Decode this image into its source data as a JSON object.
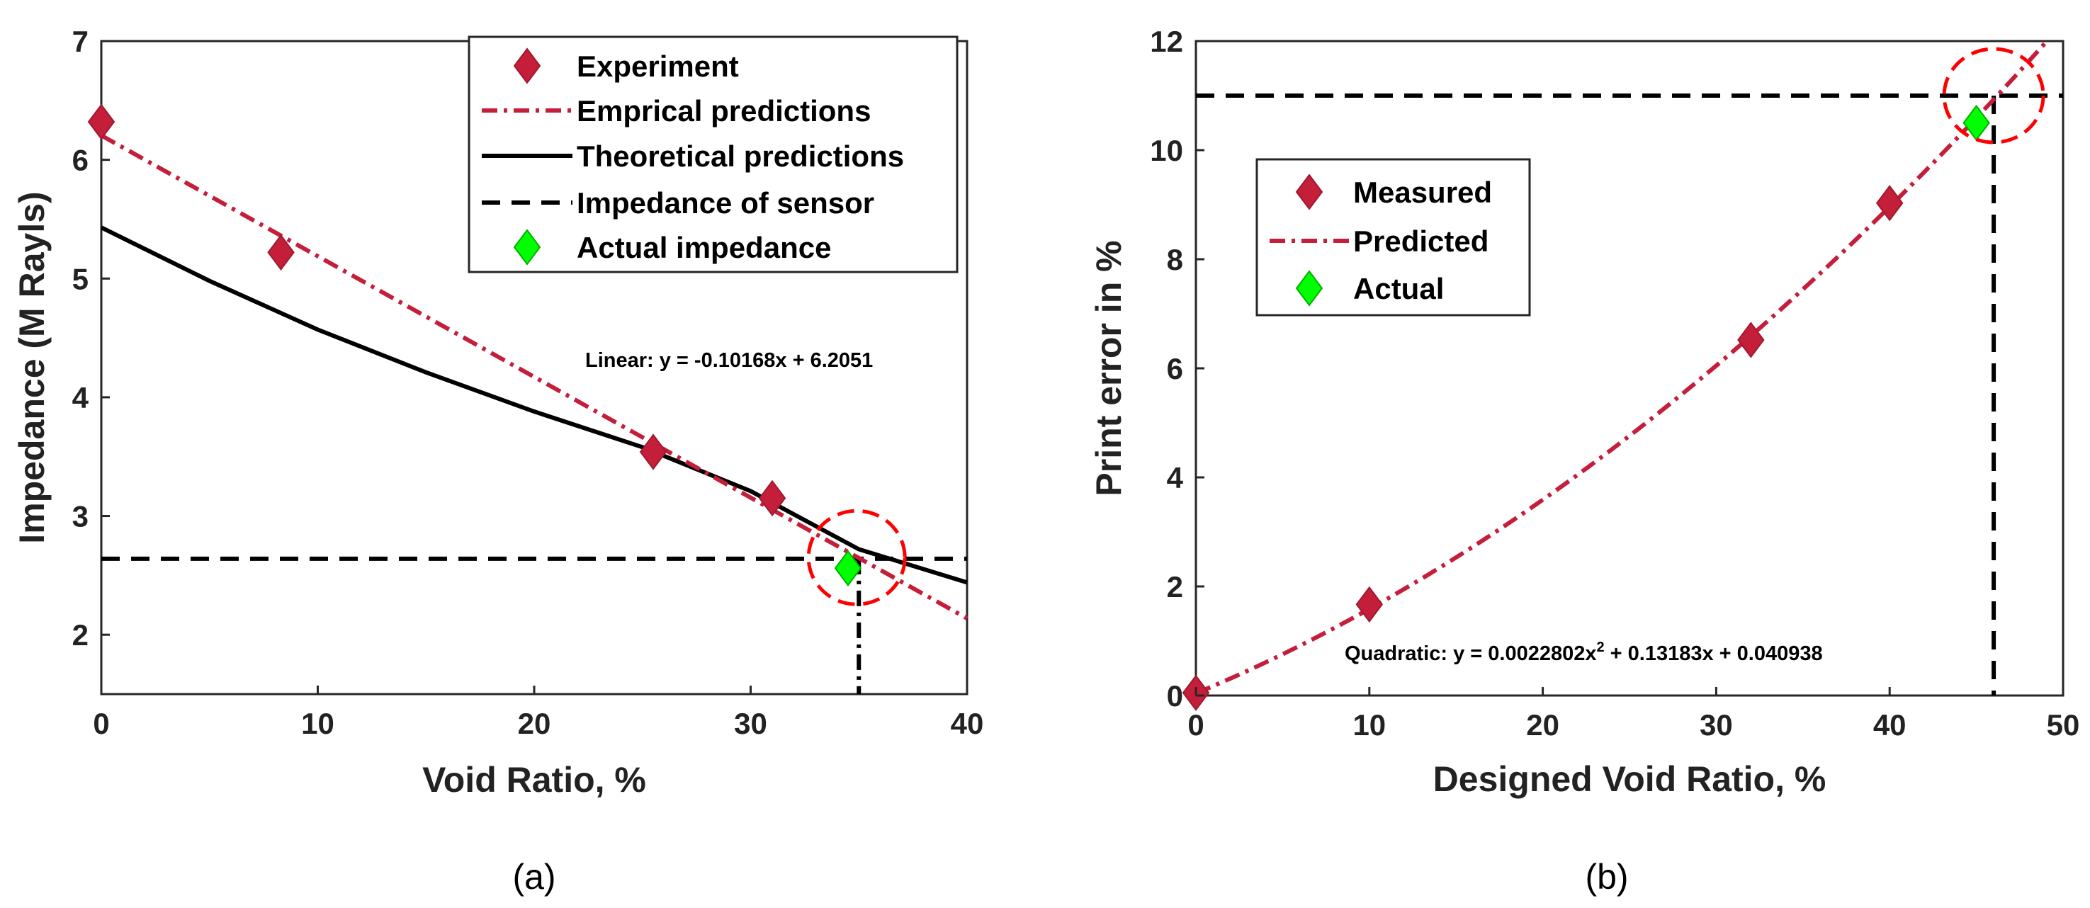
{
  "colors": {
    "marker": "#C41E3A",
    "marker_edge": "#9E1A2E",
    "predicted_line": "#C41E3A",
    "theory_line": "#000000",
    "actual": "#00FF00",
    "highlight_circle": "#FF0000",
    "reference_line": "#000000"
  },
  "chart_data": [
    {
      "type": "line",
      "panel": "a",
      "caption": "(a)",
      "xlabel": "Void Ratio, %",
      "ylabel": "Impedance (M Rayls)",
      "xlim": [
        0,
        40
      ],
      "ylim": [
        1.5,
        7
      ],
      "xticks": [
        0,
        10,
        20,
        30,
        40
      ],
      "yticks": [
        2,
        3,
        4,
        5,
        6,
        7
      ],
      "legend_position": "top-right",
      "annotation": "Linear: y = -0.10168x + 6.2051",
      "series": [
        {
          "name": "Experiment",
          "kind": "markers",
          "x": [
            0,
            8.3,
            25.5,
            31.0
          ],
          "y": [
            6.32,
            5.22,
            3.54,
            3.15
          ]
        },
        {
          "name": "Emprical predictions",
          "kind": "line",
          "style": "dashdot",
          "slope": -0.10168,
          "intercept": 6.2051,
          "x_range": [
            0,
            40
          ]
        },
        {
          "name": "Theoretical predictions",
          "kind": "curve",
          "style": "solid",
          "x": [
            0,
            5,
            10,
            15,
            20,
            25,
            30,
            35,
            40
          ],
          "y": [
            5.43,
            4.98,
            4.57,
            4.21,
            3.88,
            3.58,
            3.21,
            2.72,
            2.44
          ]
        },
        {
          "name": "Impedance of sensor",
          "kind": "hline",
          "style": "dashed",
          "y": 2.64
        },
        {
          "name": "Actual impedance",
          "kind": "markers",
          "x": [
            34.5
          ],
          "y": [
            2.56
          ]
        }
      ],
      "vertical_reference": {
        "x": 35,
        "style": "dashdot"
      },
      "highlight_circle": {
        "x": 34.9,
        "y": 2.65
      }
    },
    {
      "type": "line",
      "panel": "b",
      "caption": "(b)",
      "xlabel": "Designed Void Ratio, %",
      "ylabel": "Print error in %",
      "xlim": [
        0,
        50
      ],
      "ylim": [
        0,
        12
      ],
      "xticks": [
        0,
        10,
        20,
        30,
        40,
        50
      ],
      "yticks": [
        0,
        2,
        4,
        6,
        8,
        10,
        12
      ],
      "legend_position": "top-left",
      "annotation_prefix": "Quadratic: y = 0.0022802x",
      "annotation_sup": "2",
      "annotation_suffix": " + 0.13183x + 0.040938",
      "series": [
        {
          "name": "Measured",
          "kind": "markers",
          "x": [
            0,
            10,
            32,
            40
          ],
          "y": [
            0.05,
            1.67,
            6.52,
            9.03
          ]
        },
        {
          "name": "Predicted",
          "kind": "quadratic",
          "style": "dashdot",
          "coeffs": [
            0.0022802,
            0.13183,
            0.040938
          ],
          "x_range": [
            0,
            49
          ]
        },
        {
          "name": "Actual",
          "kind": "markers",
          "x": [
            45
          ],
          "y": [
            10.5
          ]
        }
      ],
      "horizontal_reference": {
        "y": 11,
        "style": "dashed"
      },
      "vertical_reference": {
        "x": 46,
        "style": "dashed"
      },
      "highlight_circle": {
        "x": 46,
        "y": 11
      }
    }
  ]
}
